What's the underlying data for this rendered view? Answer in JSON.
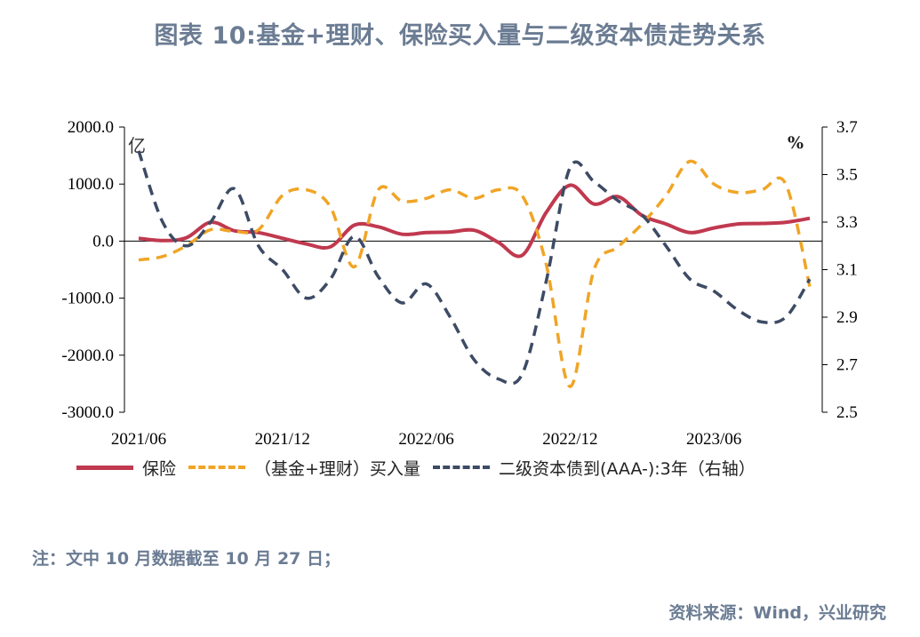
{
  "title": "图表 10:基金+理财、保险买入量与二级资本债走势关系",
  "unit_left": "亿",
  "unit_right": "%",
  "note": "注：文中 10 月数据截至 10 月 27 日；",
  "source": "资料来源：Wind，兴业研究",
  "colors": {
    "insurance": "#c0394f",
    "fund": "#f0a526",
    "bond": "#3d4b64"
  },
  "chart_data": {
    "type": "line",
    "x_ticks": [
      "2021/06",
      "2021/12",
      "2022/06",
      "2022/12",
      "2023/06"
    ],
    "x_range": [
      0,
      28
    ],
    "y_left": {
      "ticks": [
        "2000.0",
        "1000.0",
        "0.0",
        "-1000.0",
        "-2000.0",
        "-3000.0"
      ],
      "range": [
        -3000,
        2000
      ]
    },
    "y_right": {
      "ticks": [
        "3.7",
        "3.5",
        "3.3",
        "3.1",
        "2.9",
        "2.7",
        "2.5"
      ],
      "range": [
        2.5,
        3.7
      ]
    },
    "grid": false,
    "legend_position": "bottom",
    "series": [
      {
        "name": "保险",
        "axis": "left",
        "style": "solid",
        "color": "#c0394f",
        "x": [
          0,
          1,
          2,
          3,
          4,
          5,
          6,
          7,
          8,
          9,
          10,
          11,
          12,
          13,
          14,
          15,
          16,
          17,
          18,
          19,
          20,
          21,
          22,
          23,
          24,
          25,
          26,
          27,
          28
        ],
        "values": [
          50,
          10,
          60,
          330,
          180,
          150,
          50,
          -50,
          -100,
          280,
          250,
          120,
          150,
          160,
          190,
          -20,
          -250,
          500,
          980,
          650,
          780,
          450,
          300,
          150,
          230,
          300,
          310,
          330,
          400
        ]
      },
      {
        "name": "（基金+理财）买入量",
        "axis": "left",
        "style": "dashed",
        "color": "#f0a526",
        "x": [
          0,
          1,
          2,
          3,
          4,
          5,
          6,
          7,
          8,
          9,
          10,
          11,
          12,
          13,
          14,
          15,
          16,
          17,
          18,
          19,
          20,
          21,
          22,
          23,
          24,
          25,
          26,
          27,
          28
        ],
        "values": [
          -330,
          -270,
          -80,
          200,
          170,
          200,
          800,
          900,
          600,
          -450,
          900,
          700,
          750,
          900,
          750,
          900,
          800,
          -400,
          -2550,
          -500,
          -100,
          300,
          800,
          1400,
          1000,
          850,
          900,
          1000,
          -800
        ]
      },
      {
        "name": "二级资本债到(AAA-):3年（右轴）",
        "axis": "right",
        "style": "dashed",
        "color": "#3d4b64",
        "x": [
          0,
          1,
          2,
          3,
          4,
          5,
          6,
          7,
          8,
          9,
          10,
          11,
          12,
          13,
          14,
          15,
          16,
          17,
          18,
          19,
          20,
          21,
          22,
          23,
          24,
          25,
          26,
          27,
          28
        ],
        "values": [
          3.6,
          3.3,
          3.2,
          3.3,
          3.44,
          3.2,
          3.1,
          2.98,
          3.06,
          3.24,
          3.07,
          2.96,
          3.04,
          2.9,
          2.72,
          2.64,
          2.66,
          3.05,
          3.53,
          3.47,
          3.39,
          3.33,
          3.2,
          3.06,
          3.01,
          2.93,
          2.88,
          2.9,
          3.06
        ]
      }
    ]
  }
}
